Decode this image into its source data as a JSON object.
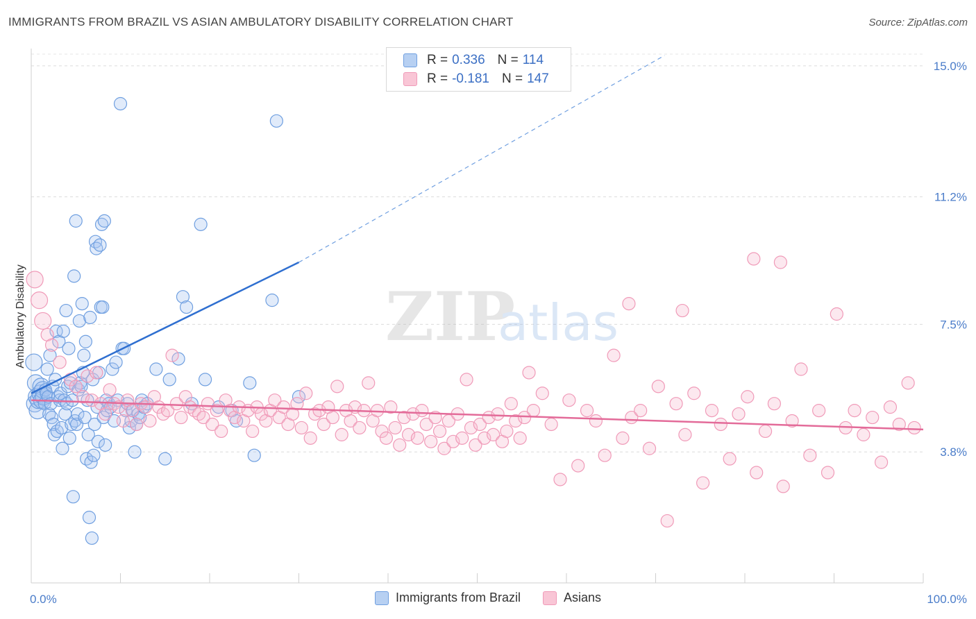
{
  "title": "IMMIGRANTS FROM BRAZIL VS ASIAN AMBULATORY DISABILITY CORRELATION CHART",
  "source": "Source: ZipAtlas.com",
  "watermark": {
    "zip": "ZIP",
    "atlas": "atlas"
  },
  "legend": {
    "rows": [
      {
        "r_label": "R =",
        "r_value": "0.336",
        "n_label": "N =",
        "n_value": "114"
      },
      {
        "r_label": "R =",
        "r_value": "-0.181",
        "n_label": "N =",
        "n_value": "147"
      }
    ]
  },
  "bottom_legend": [
    "Immigrants from Brazil",
    "Asians"
  ],
  "chart_data": {
    "type": "scatter",
    "title": "IMMIGRANTS FROM BRAZIL VS ASIAN AMBULATORY DISABILITY CORRELATION CHART",
    "ylabel": "Ambulatory Disability",
    "xlabel": "",
    "xlim": [
      0,
      100
    ],
    "ylim": [
      0.0,
      15.5
    ],
    "y_ticks": [
      3.8,
      7.5,
      11.2,
      15.0
    ],
    "y_tick_labels": [
      "3.8%",
      "7.5%",
      "11.2%",
      "15.0%"
    ],
    "x_tick_labels": [
      "0.0%",
      "100.0%"
    ],
    "grid": "horizontal dashed",
    "legend_position": "top-center",
    "colors": {
      "brazil": "#6f9fe0",
      "brazil_line": "#2f6fd0",
      "asians": "#f09ab8",
      "asians_line": "#e36b99"
    },
    "series": [
      {
        "name": "Immigrants from Brazil",
        "R": 0.336,
        "N": 114,
        "trend": {
          "x": [
            0,
            30
          ],
          "y": [
            5.5,
            9.3
          ],
          "dashed_to": [
            71,
            15.3
          ]
        },
        "points": [
          [
            0.3,
            6.4
          ],
          [
            0.4,
            5.2
          ],
          [
            0.5,
            5.8
          ],
          [
            0.6,
            5.4
          ],
          [
            0.7,
            5.0
          ],
          [
            0.8,
            5.3
          ],
          [
            1.0,
            5.5
          ],
          [
            1.1,
            5.7
          ],
          [
            1.2,
            5.3
          ],
          [
            1.3,
            5.6
          ],
          [
            1.4,
            5.4
          ],
          [
            1.5,
            5.2
          ],
          [
            1.6,
            5.6
          ],
          [
            1.7,
            5.5
          ],
          [
            1.8,
            6.2
          ],
          [
            1.9,
            5.4
          ],
          [
            2.0,
            4.9
          ],
          [
            2.1,
            6.6
          ],
          [
            2.2,
            5.2
          ],
          [
            2.3,
            4.8
          ],
          [
            2.4,
            5.7
          ],
          [
            2.5,
            4.6
          ],
          [
            2.6,
            4.3
          ],
          [
            2.7,
            5.9
          ],
          [
            2.8,
            7.3
          ],
          [
            2.9,
            4.4
          ],
          [
            3.0,
            5.4
          ],
          [
            3.1,
            7.0
          ],
          [
            3.2,
            5.3
          ],
          [
            3.3,
            5.5
          ],
          [
            3.4,
            4.5
          ],
          [
            3.5,
            3.9
          ],
          [
            3.6,
            7.3
          ],
          [
            3.7,
            5.3
          ],
          [
            3.8,
            4.9
          ],
          [
            3.9,
            7.9
          ],
          [
            4.0,
            5.2
          ],
          [
            4.1,
            5.7
          ],
          [
            4.2,
            6.8
          ],
          [
            4.3,
            4.2
          ],
          [
            4.4,
            5.8
          ],
          [
            4.5,
            4.6
          ],
          [
            4.6,
            5.3
          ],
          [
            4.7,
            2.5
          ],
          [
            4.8,
            8.9
          ],
          [
            4.9,
            4.7
          ],
          [
            5.0,
            10.5
          ],
          [
            5.1,
            4.6
          ],
          [
            5.2,
            4.9
          ],
          [
            5.3,
            5.6
          ],
          [
            5.4,
            7.6
          ],
          [
            5.5,
            5.8
          ],
          [
            5.6,
            5.7
          ],
          [
            5.7,
            8.1
          ],
          [
            5.8,
            6.1
          ],
          [
            5.9,
            6.6
          ],
          [
            6.0,
            4.8
          ],
          [
            6.1,
            7.0
          ],
          [
            6.2,
            3.6
          ],
          [
            6.3,
            5.3
          ],
          [
            6.4,
            4.3
          ],
          [
            6.5,
            1.9
          ],
          [
            6.6,
            7.7
          ],
          [
            6.7,
            3.5
          ],
          [
            6.8,
            1.3
          ],
          [
            6.9,
            5.9
          ],
          [
            7.0,
            3.7
          ],
          [
            7.1,
            4.6
          ],
          [
            7.2,
            9.9
          ],
          [
            7.3,
            9.7
          ],
          [
            7.4,
            5.1
          ],
          [
            7.5,
            4.1
          ],
          [
            7.6,
            6.1
          ],
          [
            7.7,
            9.8
          ],
          [
            7.8,
            8.0
          ],
          [
            7.9,
            10.4
          ],
          [
            8.0,
            8.0
          ],
          [
            8.1,
            4.8
          ],
          [
            8.2,
            10.5
          ],
          [
            8.3,
            4.0
          ],
          [
            8.4,
            5.3
          ],
          [
            8.5,
            5.0
          ],
          [
            8.7,
            5.2
          ],
          [
            8.9,
            5.1
          ],
          [
            9.1,
            6.2
          ],
          [
            9.3,
            4.7
          ],
          [
            9.5,
            6.4
          ],
          [
            9.7,
            5.3
          ],
          [
            10.0,
            13.9
          ],
          [
            10.2,
            6.8
          ],
          [
            10.4,
            6.8
          ],
          [
            10.6,
            5.0
          ],
          [
            10.8,
            5.2
          ],
          [
            11.0,
            4.5
          ],
          [
            11.2,
            4.7
          ],
          [
            11.4,
            5.0
          ],
          [
            11.6,
            3.8
          ],
          [
            11.8,
            4.6
          ],
          [
            12.0,
            4.9
          ],
          [
            12.2,
            4.8
          ],
          [
            12.4,
            5.3
          ],
          [
            12.6,
            5.1
          ],
          [
            13.0,
            5.2
          ],
          [
            14.0,
            6.2
          ],
          [
            15.0,
            3.6
          ],
          [
            15.5,
            5.9
          ],
          [
            16.5,
            6.5
          ],
          [
            17.0,
            8.3
          ],
          [
            17.4,
            8.0
          ],
          [
            18.0,
            5.2
          ],
          [
            19.0,
            10.4
          ],
          [
            19.5,
            5.9
          ],
          [
            21.0,
            5.1
          ],
          [
            22.5,
            5.0
          ],
          [
            23.0,
            4.7
          ],
          [
            24.5,
            5.8
          ],
          [
            25.0,
            3.7
          ],
          [
            27.0,
            8.2
          ],
          [
            30.0,
            5.4
          ],
          [
            27.5,
            13.4
          ]
        ]
      },
      {
        "name": "Asians",
        "R": -0.181,
        "N": 147,
        "trend": {
          "x": [
            0,
            100
          ],
          "y": [
            5.3,
            4.45
          ]
        },
        "points": [
          [
            0.4,
            8.8
          ],
          [
            0.9,
            8.2
          ],
          [
            1.3,
            7.6
          ],
          [
            1.8,
            7.2
          ],
          [
            2.3,
            6.9
          ],
          [
            3.2,
            6.4
          ],
          [
            4.4,
            5.9
          ],
          [
            5.0,
            5.7
          ],
          [
            5.8,
            5.4
          ],
          [
            6.3,
            6.0
          ],
          [
            6.8,
            5.3
          ],
          [
            7.3,
            6.1
          ],
          [
            7.8,
            5.2
          ],
          [
            8.3,
            4.9
          ],
          [
            8.8,
            5.6
          ],
          [
            9.3,
            5.2
          ],
          [
            9.8,
            5.1
          ],
          [
            10.3,
            4.7
          ],
          [
            10.8,
            5.3
          ],
          [
            11.3,
            5.0
          ],
          [
            11.8,
            4.6
          ],
          [
            12.3,
            5.2
          ],
          [
            12.8,
            5.1
          ],
          [
            13.3,
            4.7
          ],
          [
            13.8,
            5.4
          ],
          [
            14.3,
            5.1
          ],
          [
            14.8,
            4.9
          ],
          [
            15.3,
            5.0
          ],
          [
            15.8,
            6.6
          ],
          [
            16.3,
            5.2
          ],
          [
            16.8,
            4.8
          ],
          [
            17.3,
            5.4
          ],
          [
            17.8,
            5.1
          ],
          [
            18.3,
            5.0
          ],
          [
            18.8,
            4.9
          ],
          [
            19.3,
            4.8
          ],
          [
            19.8,
            5.2
          ],
          [
            20.3,
            4.6
          ],
          [
            20.8,
            5.0
          ],
          [
            21.3,
            4.4
          ],
          [
            21.8,
            5.3
          ],
          [
            22.3,
            5.0
          ],
          [
            22.8,
            4.8
          ],
          [
            23.3,
            5.1
          ],
          [
            23.8,
            4.7
          ],
          [
            24.3,
            5.0
          ],
          [
            24.8,
            4.4
          ],
          [
            25.3,
            5.1
          ],
          [
            25.8,
            4.9
          ],
          [
            26.3,
            4.7
          ],
          [
            26.8,
            5.0
          ],
          [
            27.3,
            5.3
          ],
          [
            27.8,
            4.8
          ],
          [
            28.3,
            5.1
          ],
          [
            28.8,
            4.6
          ],
          [
            29.3,
            4.9
          ],
          [
            29.8,
            5.2
          ],
          [
            30.3,
            4.5
          ],
          [
            30.8,
            5.5
          ],
          [
            31.3,
            4.2
          ],
          [
            31.8,
            4.9
          ],
          [
            32.3,
            5.0
          ],
          [
            32.8,
            4.6
          ],
          [
            33.3,
            5.1
          ],
          [
            33.8,
            4.8
          ],
          [
            34.3,
            5.7
          ],
          [
            34.8,
            4.3
          ],
          [
            35.3,
            5.0
          ],
          [
            35.8,
            4.7
          ],
          [
            36.3,
            5.1
          ],
          [
            36.8,
            4.5
          ],
          [
            37.3,
            5.0
          ],
          [
            37.8,
            5.8
          ],
          [
            38.3,
            4.7
          ],
          [
            38.8,
            5.0
          ],
          [
            39.3,
            4.4
          ],
          [
            39.8,
            4.2
          ],
          [
            40.3,
            5.1
          ],
          [
            40.8,
            4.5
          ],
          [
            41.3,
            4.0
          ],
          [
            41.8,
            4.8
          ],
          [
            42.3,
            4.3
          ],
          [
            42.8,
            4.9
          ],
          [
            43.3,
            4.2
          ],
          [
            43.8,
            5.0
          ],
          [
            44.3,
            4.6
          ],
          [
            44.8,
            4.1
          ],
          [
            45.3,
            4.8
          ],
          [
            45.8,
            4.4
          ],
          [
            46.3,
            3.9
          ],
          [
            46.8,
            4.7
          ],
          [
            47.3,
            4.1
          ],
          [
            47.8,
            4.9
          ],
          [
            48.3,
            4.2
          ],
          [
            48.8,
            5.9
          ],
          [
            49.3,
            4.5
          ],
          [
            49.8,
            4.0
          ],
          [
            50.3,
            4.6
          ],
          [
            50.8,
            4.2
          ],
          [
            51.3,
            4.8
          ],
          [
            51.8,
            4.3
          ],
          [
            52.3,
            4.9
          ],
          [
            52.8,
            4.1
          ],
          [
            53.3,
            4.4
          ],
          [
            53.8,
            5.2
          ],
          [
            54.3,
            4.7
          ],
          [
            54.8,
            4.2
          ],
          [
            55.3,
            4.8
          ],
          [
            55.8,
            6.1
          ],
          [
            56.3,
            5.0
          ],
          [
            57.3,
            5.5
          ],
          [
            58.3,
            4.6
          ],
          [
            59.3,
            3.0
          ],
          [
            60.3,
            5.3
          ],
          [
            61.3,
            3.4
          ],
          [
            62.3,
            5.0
          ],
          [
            63.3,
            4.7
          ],
          [
            64.3,
            3.7
          ],
          [
            65.3,
            6.6
          ],
          [
            66.3,
            4.2
          ],
          [
            67.3,
            4.8
          ],
          [
            68.3,
            5.0
          ],
          [
            69.3,
            3.9
          ],
          [
            70.3,
            5.7
          ],
          [
            71.3,
            1.8
          ],
          [
            72.3,
            5.2
          ],
          [
            73.3,
            4.3
          ],
          [
            74.3,
            5.5
          ],
          [
            75.3,
            2.9
          ],
          [
            76.3,
            5.0
          ],
          [
            77.3,
            4.6
          ],
          [
            78.3,
            3.6
          ],
          [
            79.3,
            4.9
          ],
          [
            80.3,
            5.4
          ],
          [
            81.3,
            3.2
          ],
          [
            82.3,
            4.4
          ],
          [
            83.3,
            5.2
          ],
          [
            84.3,
            2.8
          ],
          [
            85.3,
            4.7
          ],
          [
            86.3,
            6.2
          ],
          [
            87.3,
            3.7
          ],
          [
            88.3,
            5.0
          ],
          [
            89.3,
            3.2
          ],
          [
            90.3,
            7.8
          ],
          [
            91.3,
            4.5
          ],
          [
            92.3,
            5.0
          ],
          [
            93.3,
            4.3
          ],
          [
            94.3,
            4.8
          ],
          [
            95.3,
            3.5
          ],
          [
            96.3,
            5.1
          ],
          [
            97.3,
            4.6
          ],
          [
            98.3,
            5.8
          ],
          [
            99.0,
            4.5
          ],
          [
            73.0,
            7.9
          ],
          [
            67.0,
            8.1
          ],
          [
            84.0,
            9.3
          ],
          [
            81.0,
            9.4
          ]
        ]
      }
    ]
  }
}
